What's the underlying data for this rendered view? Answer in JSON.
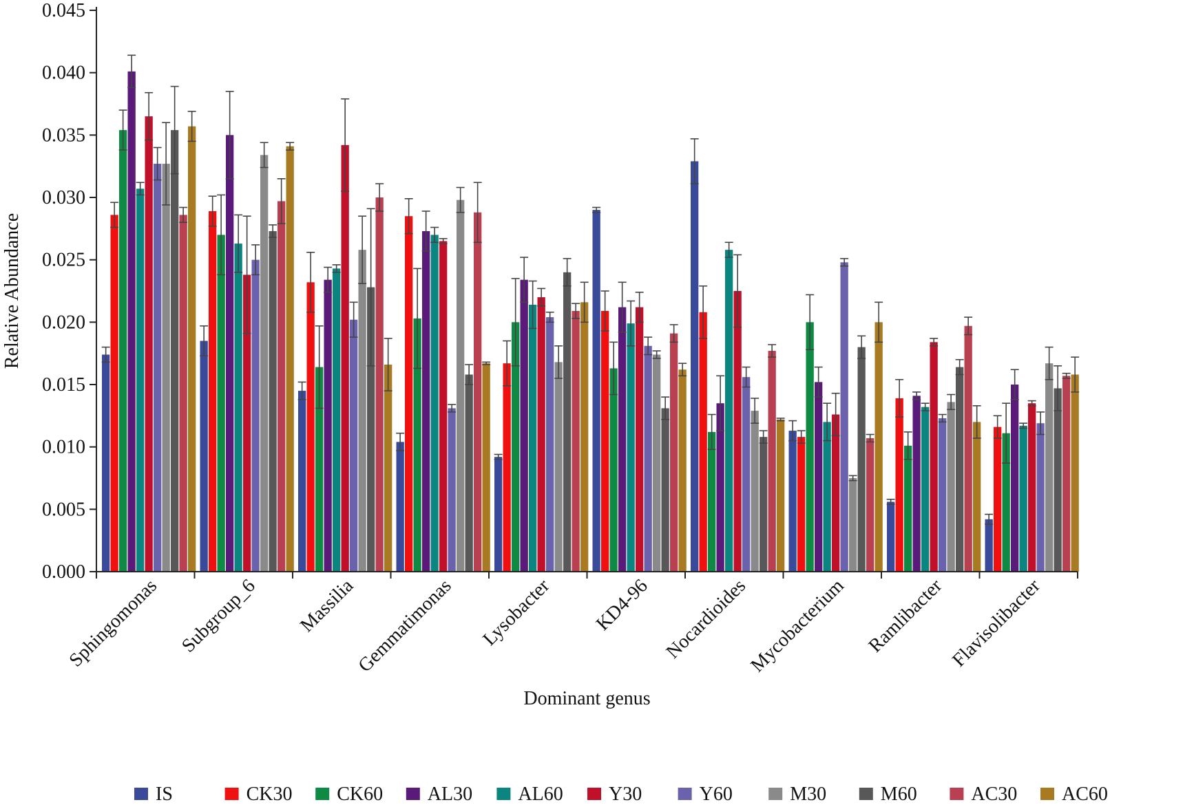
{
  "chart_data": {
    "type": "bar",
    "title": "",
    "xlabel": "Dominant genus",
    "ylabel": "Relative Abundance",
    "ylim": [
      0,
      0.045
    ],
    "yticks": [
      "0.000",
      "0.005",
      "0.010",
      "0.015",
      "0.020",
      "0.025",
      "0.030",
      "0.035",
      "0.040",
      "0.045"
    ],
    "grid": false,
    "legend_position": "bottom",
    "categories": [
      "Sphingomonas",
      "Subgroup_6",
      "Massilia",
      "Gemmatimonas",
      "Lysobacter",
      "KD4-96",
      "Nocardioides",
      "Mycobacterium",
      "Ramlibacter",
      "Flavisolibacter"
    ],
    "series": [
      {
        "name": "IS",
        "color": "#3a4a9a",
        "values": [
          0.0174,
          0.0185,
          0.0145,
          0.0104,
          0.0092,
          0.029,
          0.0329,
          0.0113,
          0.0056,
          0.0042
        ],
        "errors": [
          0.0006,
          0.0012,
          0.0007,
          0.0007,
          0.0002,
          0.0002,
          0.0018,
          0.0008,
          0.0002,
          0.0004
        ]
      },
      {
        "name": "CK30",
        "color": "#f01010",
        "values": [
          0.0286,
          0.0289,
          0.0232,
          0.0285,
          0.0167,
          0.0209,
          0.0208,
          0.0108,
          0.0139,
          0.0116
        ],
        "errors": [
          0.001,
          0.0012,
          0.0024,
          0.0014,
          0.0018,
          0.0016,
          0.0021,
          0.0005,
          0.0015,
          0.0009
        ]
      },
      {
        "name": "CK60",
        "color": "#0e8a44",
        "values": [
          0.0354,
          0.027,
          0.0164,
          0.0203,
          0.02,
          0.0163,
          0.0112,
          0.02,
          0.0101,
          0.0111
        ],
        "errors": [
          0.0016,
          0.0032,
          0.0033,
          0.004,
          0.0035,
          0.0021,
          0.0014,
          0.0022,
          0.0011,
          0.0024
        ]
      },
      {
        "name": "AL30",
        "color": "#5a1a7a",
        "values": [
          0.0401,
          0.035,
          0.0234,
          0.0273,
          0.0234,
          0.0212,
          0.0135,
          0.0152,
          0.0141,
          0.015
        ],
        "errors": [
          0.0013,
          0.0035,
          0.001,
          0.0016,
          0.0018,
          0.002,
          0.0022,
          0.0012,
          0.0003,
          0.0012
        ]
      },
      {
        "name": "AL60",
        "color": "#0a8580",
        "values": [
          0.0307,
          0.0263,
          0.0243,
          0.027,
          0.0214,
          0.0199,
          0.0258,
          0.012,
          0.0132,
          0.0117
        ],
        "errors": [
          0.0005,
          0.0023,
          0.0003,
          0.0006,
          0.0019,
          0.0018,
          0.0006,
          0.0015,
          0.0003,
          0.0002
        ]
      },
      {
        "name": "Y30",
        "color": "#c0102a",
        "values": [
          0.0365,
          0.0238,
          0.0342,
          0.0265,
          0.022,
          0.0212,
          0.0225,
          0.0126,
          0.0184,
          0.0135
        ],
        "errors": [
          0.0019,
          0.0047,
          0.0037,
          0.0002,
          0.0007,
          0.0012,
          0.0029,
          0.0017,
          0.0003,
          0.0002
        ]
      },
      {
        "name": "Y60",
        "color": "#6a62ac",
        "values": [
          0.0327,
          0.025,
          0.0202,
          0.0131,
          0.0204,
          0.0181,
          0.0156,
          0.0248,
          0.0123,
          0.0119
        ],
        "errors": [
          0.0013,
          0.0012,
          0.0014,
          0.0003,
          0.0004,
          0.0007,
          0.0008,
          0.0003,
          0.0003,
          0.0009
        ]
      },
      {
        "name": "M30",
        "color": "#8a8a8a",
        "values": [
          0.0327,
          0.0334,
          0.0258,
          0.0298,
          0.0168,
          0.0174,
          0.0129,
          0.0075,
          0.0136,
          0.0167
        ],
        "errors": [
          0.0033,
          0.001,
          0.0027,
          0.001,
          0.0013,
          0.0003,
          0.001,
          0.0002,
          0.0006,
          0.0013
        ]
      },
      {
        "name": "M60",
        "color": "#585858",
        "values": [
          0.0354,
          0.0273,
          0.0228,
          0.0158,
          0.024,
          0.0131,
          0.0108,
          0.018,
          0.0164,
          0.0147
        ],
        "errors": [
          0.0035,
          0.0005,
          0.0063,
          0.0008,
          0.0011,
          0.0009,
          0.0005,
          0.0009,
          0.0006,
          0.0018
        ]
      },
      {
        "name": "AC30",
        "color": "#b84050",
        "values": [
          0.0286,
          0.0297,
          0.03,
          0.0288,
          0.0209,
          0.0191,
          0.0177,
          0.0107,
          0.0197,
          0.0157
        ],
        "errors": [
          0.0006,
          0.0018,
          0.0011,
          0.0024,
          0.0006,
          0.0007,
          0.0005,
          0.0003,
          0.0007,
          0.0002
        ]
      },
      {
        "name": "AC60",
        "color": "#a87a22",
        "values": [
          0.0357,
          0.0341,
          0.0166,
          0.0167,
          0.0216,
          0.0162,
          0.0122,
          0.02,
          0.012,
          0.0158
        ],
        "errors": [
          0.0012,
          0.0003,
          0.0021,
          0.0001,
          0.0016,
          0.0005,
          0.0001,
          0.0016,
          0.0013,
          0.0014
        ]
      }
    ]
  }
}
